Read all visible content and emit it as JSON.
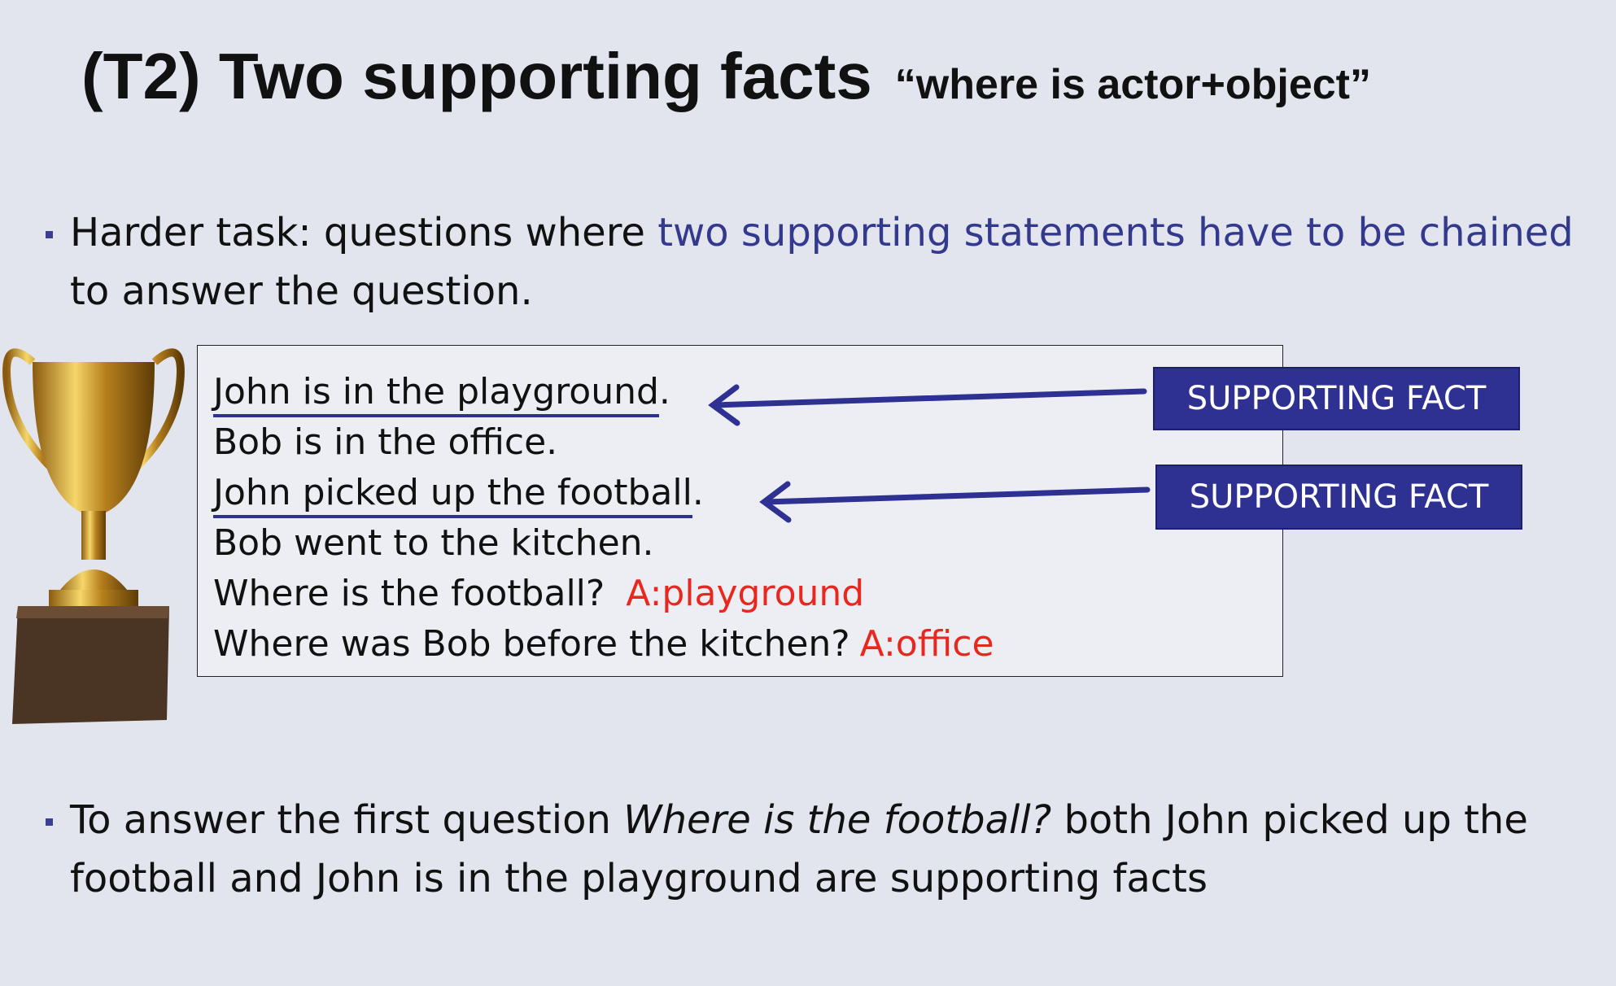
{
  "title": "(T2) Two supporting facts",
  "subtitle": "“where is actor+object”",
  "bullet1": {
    "before": "Harder task: questions where ",
    "highlight": "two supporting statements have to be chained",
    "after": " to answer the question."
  },
  "story": [
    {
      "text": "John is in the playground",
      "end": "."
    },
    {
      "text": "Bob is in the office."
    },
    {
      "text": "John picked up the football",
      "end": "."
    },
    {
      "text": "Bob went to the kitchen."
    },
    {
      "text": "Where is the football? ",
      "answer": "A:playground"
    },
    {
      "text": "Where was Bob before the kitchen?",
      "answer": "A:office"
    }
  ],
  "labels": [
    "SUPPORTING FACT",
    "SUPPORTING FACT"
  ],
  "bullet2": {
    "before": "To answer the first question ",
    "italic": "Where is the football?",
    "after": " both John picked up the football and John is in the playground are supporting facts"
  }
}
